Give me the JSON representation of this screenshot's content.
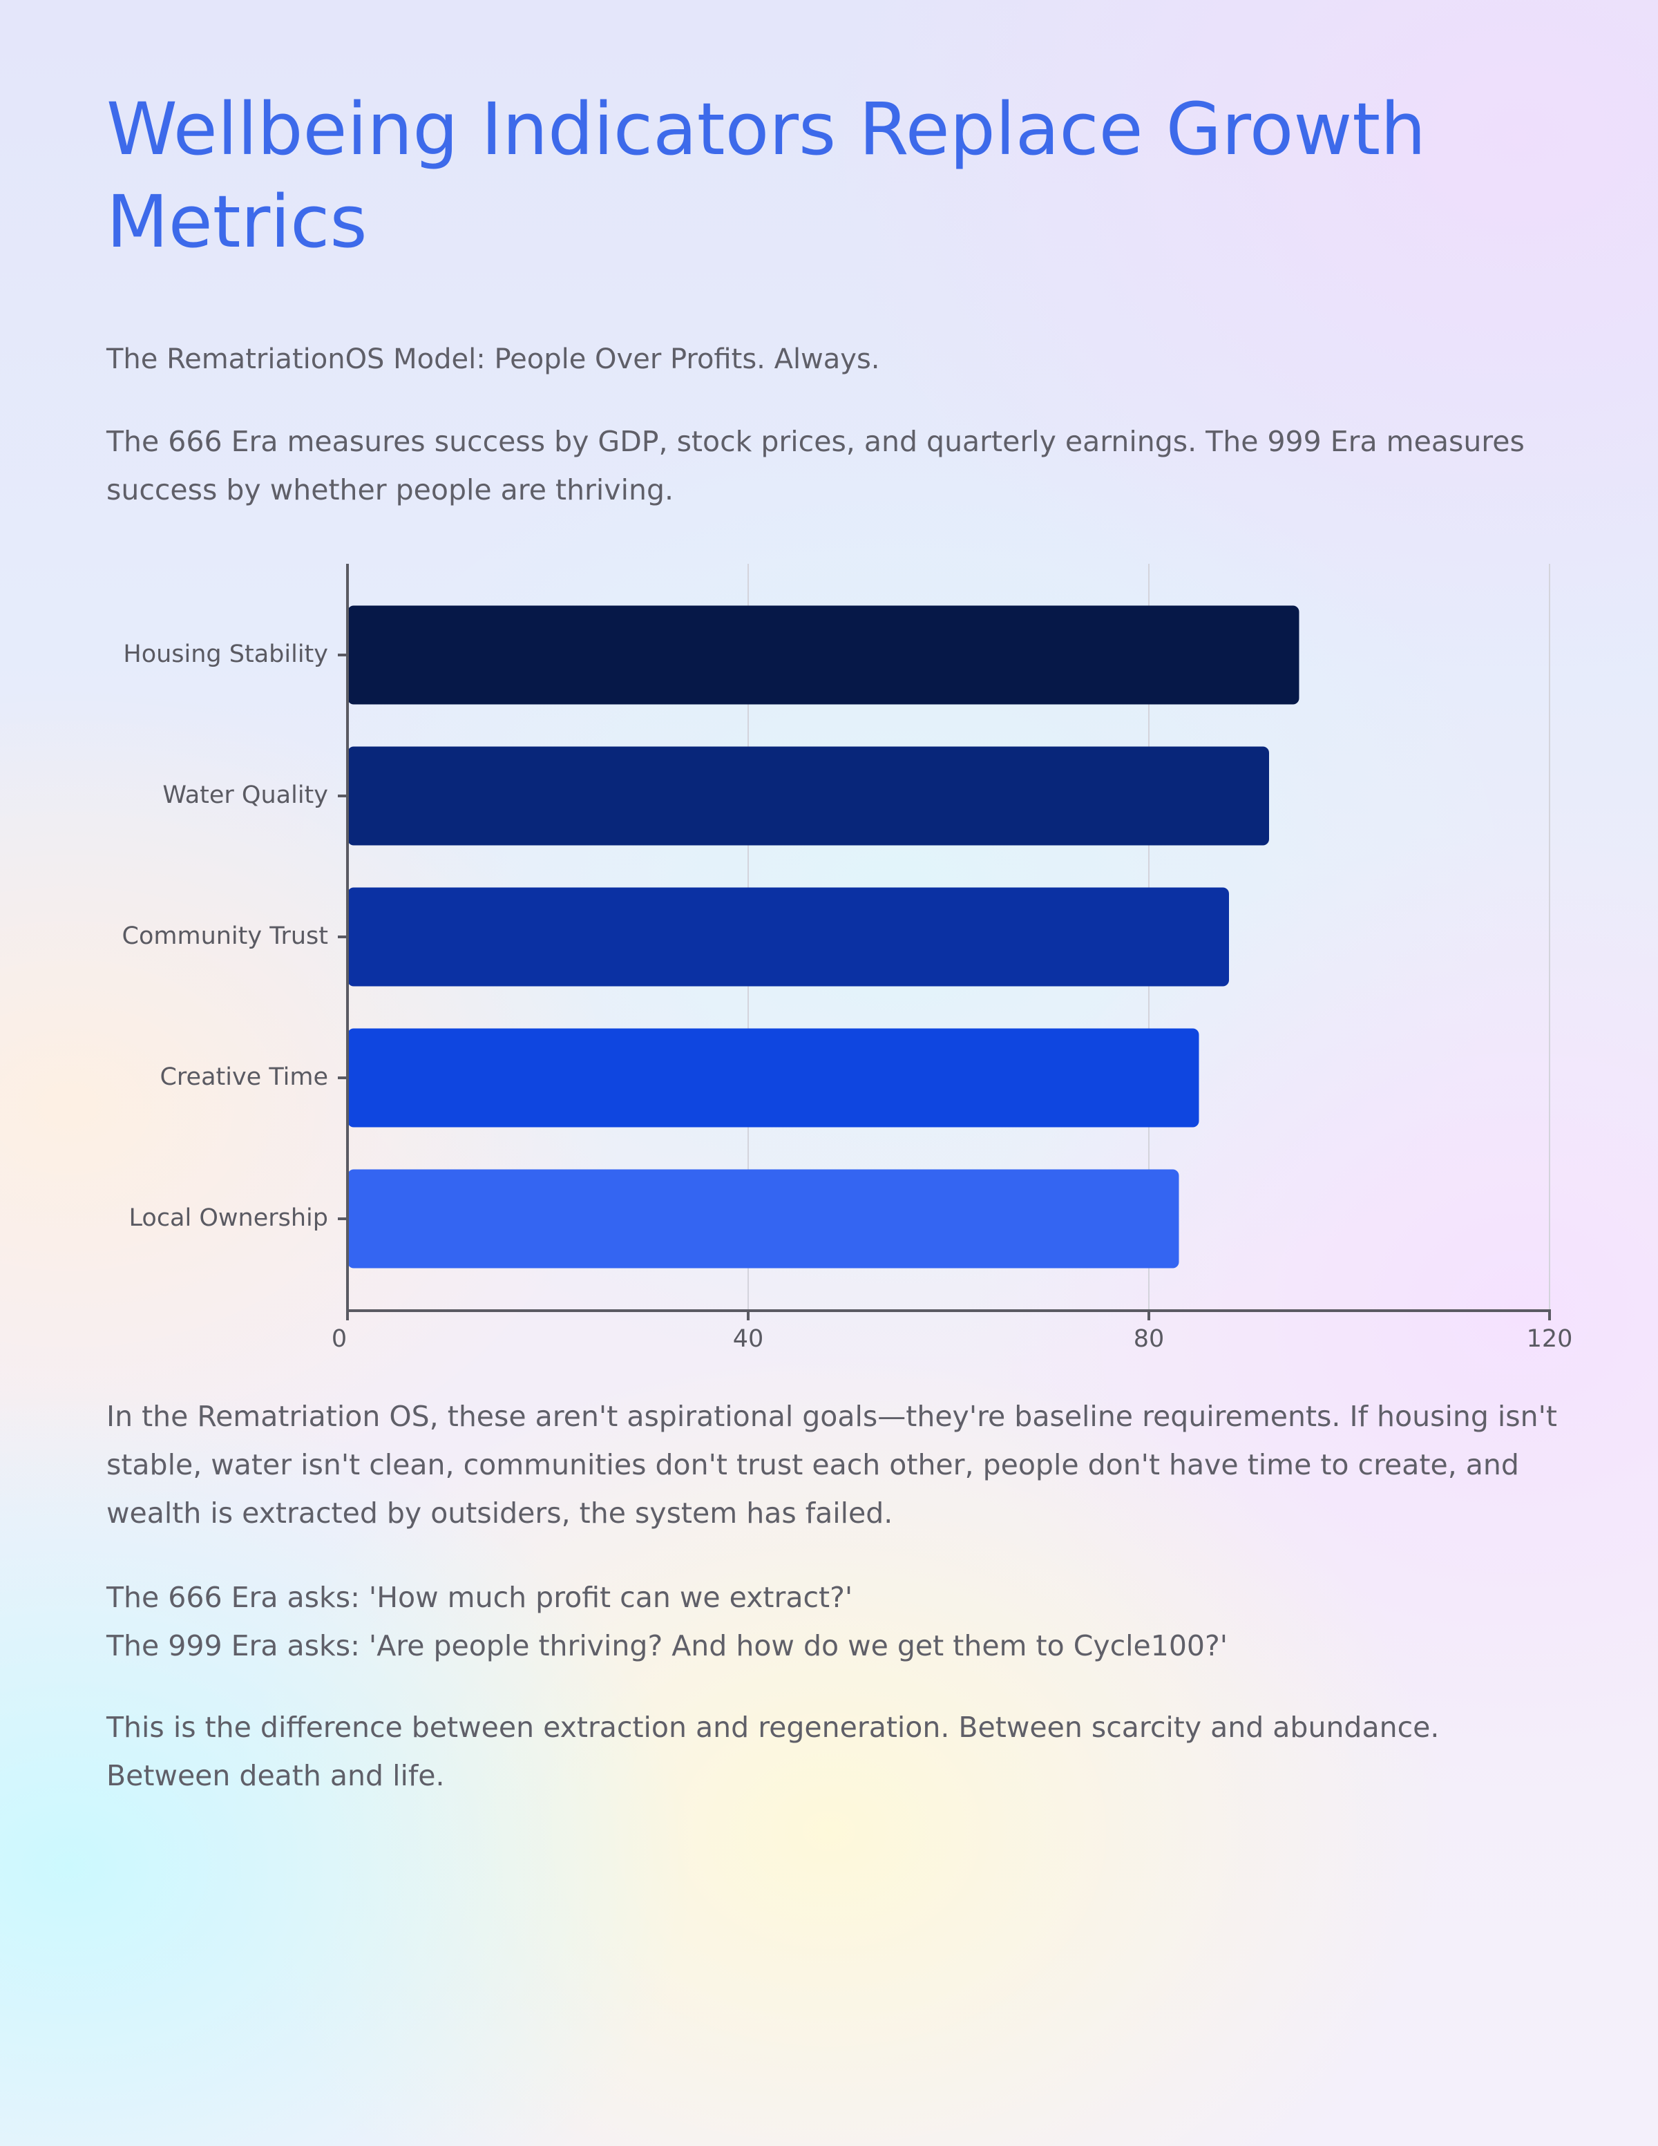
{
  "header": {
    "title": "Wellbeing Indicators Replace Growth Metrics",
    "subtitle": "The RematriationOS Model: People Over Profits. Always."
  },
  "intro": "The 666 Era measures success by GDP, stock prices, and quarterly earnings. The 999 Era measures success by whether people are thriving.",
  "chart_data": {
    "type": "bar",
    "orientation": "horizontal",
    "categories": [
      "Housing Stability",
      "Water Quality",
      "Community Trust",
      "Creative Time",
      "Local Ownership"
    ],
    "values": [
      95,
      92,
      88,
      85,
      83
    ],
    "colors": [
      "#061848",
      "#08267a",
      "#0b31a3",
      "#0f46e0",
      "#3465f2"
    ],
    "xlim": [
      0,
      120
    ],
    "xticks": [
      0,
      40,
      80,
      120
    ],
    "grid": true
  },
  "body": [
    "In the Rematriation OS, these aren't aspirational goals—they're baseline requirements. If housing isn't stable, water isn't clean, communities don't trust each other, people don't have time to create, and wealth is extracted by outsiders, the system has failed.",
    "The 666 Era asks: 'How much profit can we extract?'",
    "The 999 Era asks: 'Are people thriving? And how do we get them to Cycle100?'",
    "This is the difference between extraction and regeneration. Between scarcity and abundance. Between death and life."
  ]
}
